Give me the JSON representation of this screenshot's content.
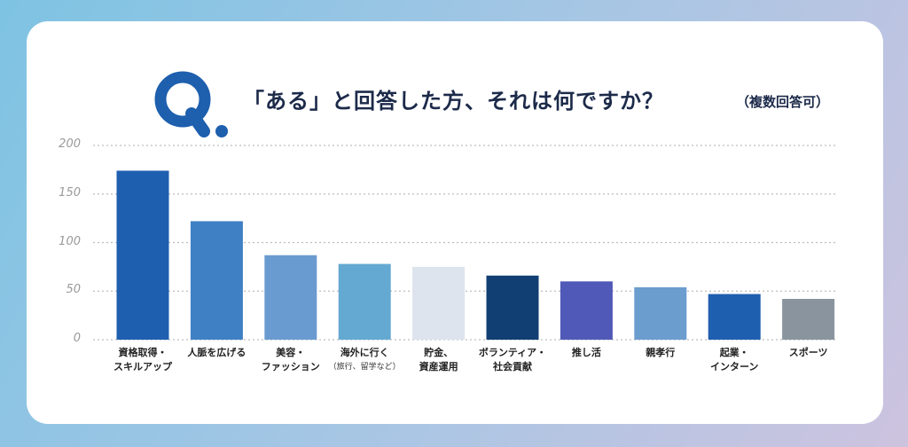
{
  "header": {
    "title": "「ある」と回答した方、それは何ですか？",
    "subtitle": "（複数回答可）"
  },
  "colors": {
    "logo": "#1e5fae",
    "grid": "#bdbdbd"
  },
  "chart_data": {
    "type": "bar",
    "title": "「ある」と回答した方、それは何ですか？",
    "subtitle": "（複数回答可）",
    "xlabel": "",
    "ylabel": "",
    "ylim": [
      0,
      200
    ],
    "yticks": [
      0,
      50,
      100,
      150,
      200
    ],
    "grid": true,
    "categories": [
      {
        "line1": "資格取得・",
        "line2": "スキルアップ",
        "small": false
      },
      {
        "line1": "人脈を広げる",
        "line2": "",
        "small": false
      },
      {
        "line1": "美容・",
        "line2": "ファッション",
        "small": false
      },
      {
        "line1": "海外に行く",
        "line2": "（旅行、留学など）",
        "small": true
      },
      {
        "line1": "貯金、",
        "line2": "資産運用",
        "small": false
      },
      {
        "line1": "ボランティア・",
        "line2": "社会貢献",
        "small": false
      },
      {
        "line1": "推し活",
        "line2": "",
        "small": false
      },
      {
        "line1": "親孝行",
        "line2": "",
        "small": false
      },
      {
        "line1": "起業・",
        "line2": "インターン",
        "small": false
      },
      {
        "line1": "スポーツ",
        "line2": "",
        "small": false
      }
    ],
    "values": [
      174,
      122,
      87,
      78,
      75,
      66,
      60,
      54,
      47,
      42
    ],
    "bar_colors": [
      "#1f5fb0",
      "#3f80c4",
      "#6a9bd0",
      "#63a9d2",
      "#dde4ee",
      "#123f73",
      "#5059b8",
      "#6b9dcf",
      "#1f5fb0",
      "#8a949e"
    ]
  }
}
